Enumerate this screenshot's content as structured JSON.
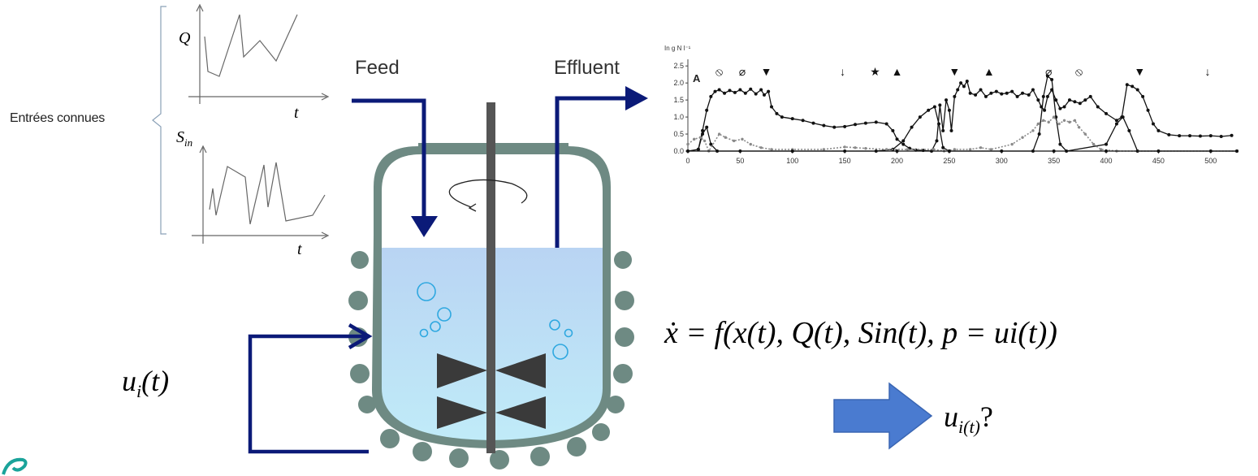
{
  "inputs": {
    "group_label": "Entrées connues",
    "plot1": {
      "ylabel": "Q",
      "xlabel": "t"
    },
    "plot2": {
      "ylabel_main": "S",
      "ylabel_sub": "in",
      "xlabel": "t"
    }
  },
  "reactor": {
    "feed_label": "Feed",
    "effluent_label": "Effluent",
    "control_label": "u_i(t)"
  },
  "equation": "ẋ = f(x(t), Q(t), Sin(t), p = ui(t))",
  "result_label": "u_i(t)?",
  "colors": {
    "arrow_navy": "#0b1a78",
    "vessel_wall": "#6e8a83",
    "liquid_top": "#b9d4f3",
    "liquid_bottom": "#bfe9f7",
    "shaft": "#555555",
    "blade": "#3a3a3a",
    "blue_arrow": "#4a7bd0",
    "bubble": "#2fa8e0"
  },
  "chart_data": {
    "type": "line",
    "ylabel": "In g N l⁻¹",
    "panel_label": "A",
    "x_ticks": [
      0,
      50,
      100,
      150,
      200,
      250,
      300,
      350,
      400,
      450,
      500
    ],
    "y_ticks": [
      0.0,
      0.5,
      1.0,
      1.5,
      2.0,
      2.5
    ],
    "xlim": [
      0,
      525
    ],
    "ylim": [
      0,
      2.6
    ],
    "series": [
      {
        "style": "solid-dots",
        "points": [
          [
            10,
            0.05
          ],
          [
            14,
            0.6
          ],
          [
            18,
            1.2
          ],
          [
            22,
            1.6
          ],
          [
            26,
            1.75
          ],
          [
            30,
            1.8
          ],
          [
            35,
            1.7
          ],
          [
            40,
            1.78
          ],
          [
            45,
            1.72
          ],
          [
            50,
            1.8
          ],
          [
            55,
            1.7
          ],
          [
            60,
            1.82
          ],
          [
            65,
            1.68
          ],
          [
            70,
            1.8
          ],
          [
            73,
            1.65
          ],
          [
            77,
            1.75
          ],
          [
            80,
            1.3
          ],
          [
            85,
            1.1
          ],
          [
            90,
            1.0
          ],
          [
            100,
            0.95
          ],
          [
            110,
            0.9
          ],
          [
            120,
            0.82
          ],
          [
            130,
            0.75
          ],
          [
            140,
            0.7
          ],
          [
            150,
            0.72
          ],
          [
            160,
            0.78
          ],
          [
            170,
            0.82
          ],
          [
            180,
            0.85
          ],
          [
            190,
            0.8
          ],
          [
            196,
            0.6
          ],
          [
            200,
            0.35
          ],
          [
            206,
            0.2
          ],
          [
            212,
            0.08
          ],
          [
            218,
            0.03
          ],
          [
            225,
            0.02
          ],
          [
            233,
            0.0
          ],
          [
            238,
            0.3
          ],
          [
            241,
            1.35
          ],
          [
            244,
            0.6
          ],
          [
            247,
            1.5
          ],
          [
            250,
            1.2
          ],
          [
            252,
            0.6
          ],
          [
            255,
            1.6
          ],
          [
            258,
            1.8
          ],
          [
            261,
            2.0
          ],
          [
            264,
            1.9
          ],
          [
            267,
            2.05
          ],
          [
            270,
            1.7
          ],
          [
            275,
            1.65
          ],
          [
            280,
            1.8
          ],
          [
            285,
            1.6
          ],
          [
            290,
            1.7
          ],
          [
            295,
            1.75
          ],
          [
            300,
            1.68
          ],
          [
            305,
            1.7
          ],
          [
            310,
            1.75
          ],
          [
            315,
            1.6
          ],
          [
            320,
            1.7
          ],
          [
            326,
            1.65
          ],
          [
            330,
            1.8
          ],
          [
            335,
            1.5
          ],
          [
            338,
            1.3
          ],
          [
            341,
            1.2
          ],
          [
            344,
            1.6
          ],
          [
            348,
            1.8
          ],
          [
            352,
            1.5
          ],
          [
            356,
            1.25
          ],
          [
            360,
            1.3
          ],
          [
            365,
            1.5
          ],
          [
            370,
            1.45
          ],
          [
            375,
            1.4
          ],
          [
            380,
            1.5
          ],
          [
            385,
            1.6
          ],
          [
            392,
            1.3
          ],
          [
            400,
            1.1
          ],
          [
            410,
            0.9
          ],
          [
            415,
            1.0
          ],
          [
            420,
            1.95
          ],
          [
            425,
            1.9
          ],
          [
            430,
            1.8
          ],
          [
            435,
            1.6
          ],
          [
            440,
            1.2
          ],
          [
            445,
            0.8
          ],
          [
            450,
            0.6
          ],
          [
            460,
            0.48
          ],
          [
            470,
            0.45
          ],
          [
            480,
            0.45
          ],
          [
            490,
            0.44
          ],
          [
            500,
            0.45
          ],
          [
            510,
            0.43
          ],
          [
            520,
            0.46
          ]
        ]
      },
      {
        "style": "solid-dots",
        "points": [
          [
            0,
            0.0
          ],
          [
            10,
            0.05
          ],
          [
            14,
            0.5
          ],
          [
            18,
            0.7
          ],
          [
            22,
            0.2
          ],
          [
            28,
            0.0
          ],
          [
            100,
            0.0
          ],
          [
            180,
            0.0
          ],
          [
            196,
            0.05
          ],
          [
            206,
            0.3
          ],
          [
            214,
            0.7
          ],
          [
            222,
            1.0
          ],
          [
            230,
            1.2
          ],
          [
            236,
            1.3
          ],
          [
            240,
            0.8
          ],
          [
            244,
            0.1
          ],
          [
            250,
            0.0
          ],
          [
            330,
            0.0
          ],
          [
            336,
            0.5
          ],
          [
            340,
            1.6
          ],
          [
            344,
            2.2
          ],
          [
            348,
            2.1
          ],
          [
            352,
            1.0
          ],
          [
            356,
            0.2
          ],
          [
            362,
            0.0
          ],
          [
            400,
            0.2
          ],
          [
            410,
            0.8
          ],
          [
            416,
            1.0
          ],
          [
            422,
            0.6
          ],
          [
            430,
            0.0
          ],
          [
            525,
            0.0
          ]
        ]
      },
      {
        "style": "dotted-grey",
        "points": [
          [
            0,
            0.2
          ],
          [
            6,
            0.35
          ],
          [
            12,
            0.4
          ],
          [
            16,
            0.3
          ],
          [
            20,
            0.0
          ],
          [
            30,
            0.5
          ],
          [
            36,
            0.4
          ],
          [
            44,
            0.3
          ],
          [
            52,
            0.35
          ],
          [
            60,
            0.2
          ],
          [
            70,
            0.1
          ],
          [
            80,
            0.05
          ],
          [
            100,
            0.05
          ],
          [
            130,
            0.05
          ],
          [
            150,
            0.12
          ],
          [
            160,
            0.1
          ],
          [
            170,
            0.08
          ],
          [
            190,
            0.05
          ],
          [
            210,
            0.05
          ],
          [
            235,
            0.05
          ],
          [
            245,
            0.0
          ],
          [
            255,
            0.05
          ],
          [
            270,
            0.05
          ],
          [
            280,
            0.1
          ],
          [
            290,
            0.05
          ],
          [
            310,
            0.2
          ],
          [
            320,
            0.4
          ],
          [
            330,
            0.6
          ],
          [
            335,
            0.8
          ],
          [
            340,
            0.9
          ],
          [
            345,
            0.85
          ],
          [
            350,
            1.0
          ],
          [
            355,
            0.8
          ],
          [
            360,
            0.9
          ],
          [
            365,
            0.85
          ],
          [
            370,
            0.9
          ],
          [
            374,
            0.7
          ],
          [
            380,
            0.5
          ],
          [
            388,
            0.2
          ],
          [
            395,
            0.05
          ],
          [
            410,
            0.0
          ],
          [
            525,
            0.0
          ]
        ]
      },
      {
        "style": "solid-dots",
        "points": [
          [
            0,
            0.0
          ],
          [
            50,
            0.0
          ],
          [
            100,
            0.0
          ],
          [
            150,
            0.0
          ],
          [
            200,
            0.0
          ],
          [
            250,
            0.0
          ],
          [
            300,
            0.0
          ],
          [
            350,
            0.0
          ],
          [
            400,
            0.0
          ],
          [
            450,
            0.0
          ],
          [
            500,
            0.0
          ],
          [
            525,
            0.0
          ]
        ]
      }
    ],
    "markers": [
      {
        "x": 30,
        "symbol": "⦸"
      },
      {
        "x": 52,
        "symbol": "⌀"
      },
      {
        "x": 75,
        "symbol": "▼"
      },
      {
        "x": 148,
        "symbol": "↓"
      },
      {
        "x": 179,
        "symbol": "★"
      },
      {
        "x": 200,
        "symbol": "▲"
      },
      {
        "x": 255,
        "symbol": "▼"
      },
      {
        "x": 288,
        "symbol": "▲"
      },
      {
        "x": 345,
        "symbol": "⌀"
      },
      {
        "x": 374,
        "symbol": "⦸"
      },
      {
        "x": 432,
        "symbol": "▼"
      },
      {
        "x": 497,
        "symbol": "↓"
      }
    ]
  }
}
